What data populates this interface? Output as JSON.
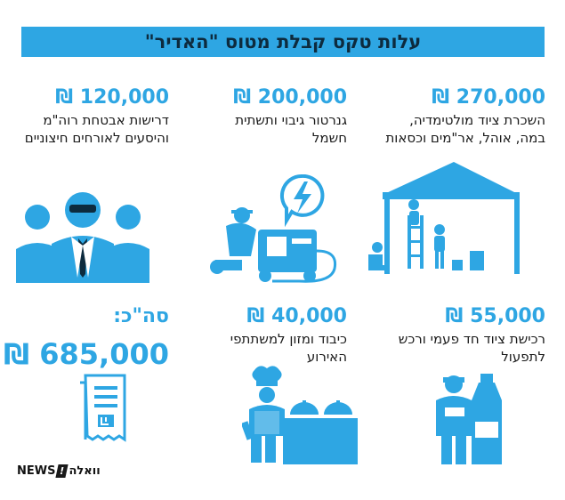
{
  "title": "עלות טקס קבלת מטוס \"האדיר\"",
  "items": [
    {
      "amount": "270,000 ₪",
      "desc": "השכרת ציוד מולטימדיה, במה, אוהל, אר\"מים וכסאות",
      "icon": "tent-stage-icon"
    },
    {
      "amount": "200,000 ₪",
      "desc": "גנרטור גיבוי ותשתית חשמל",
      "icon": "generator-icon"
    },
    {
      "amount": "120,000 ₪",
      "desc": "דרישות אבטחת רוה\"מ והיסעים לאורחים חיצוניים",
      "icon": "security-guards-icon"
    },
    {
      "amount": "55,000 ₪",
      "desc": "רכישת ציוד חד פעמי ורכש לתפעול",
      "icon": "supplies-icon"
    },
    {
      "amount": "40,000 ₪",
      "desc": "כיבוד ומזון למשתתפי האירוע",
      "icon": "catering-chef-icon"
    }
  ],
  "total": {
    "label": "סה\"כ:",
    "amount": "685,000 ₪",
    "icon": "receipt-icon"
  },
  "logo": {
    "left": "וואלה",
    "badge": "!",
    "right": "NEWS"
  },
  "colors": {
    "accent": "#2ea6e3",
    "banner_text": "#0d2b3e"
  }
}
